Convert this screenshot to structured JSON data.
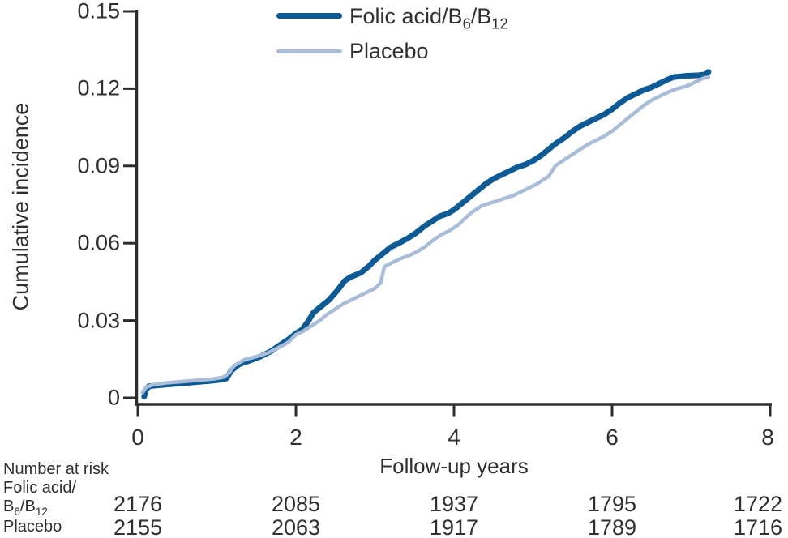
{
  "chart_data": {
    "type": "line",
    "title": "",
    "xlabel": "Follow-up years",
    "ylabel": "Cumulative incidence",
    "xlim": [
      0,
      8
    ],
    "ylim": [
      0,
      0.15
    ],
    "grid": false,
    "legend_position": "top-center",
    "xticks": [
      {
        "label": "0",
        "value": 0
      },
      {
        "label": "2",
        "value": 2
      },
      {
        "label": "4",
        "value": 4
      },
      {
        "label": "6",
        "value": 6
      },
      {
        "label": "8",
        "value": 8
      }
    ],
    "yticks": [
      {
        "label": "0",
        "value": 0
      },
      {
        "label": "0.03",
        "value": 0.03
      },
      {
        "label": "0.06",
        "value": 0.06
      },
      {
        "label": "0.09",
        "value": 0.09
      },
      {
        "label": "0.12",
        "value": 0.12
      },
      {
        "label": "0.15",
        "value": 0.15
      }
    ],
    "series": [
      {
        "name": "Folic acid/B6/B12",
        "slug": "folic-acid-b6-b12",
        "color": "#0d5a95",
        "stroke_width": 7,
        "points": [
          [
            0.08,
            0.0005
          ],
          [
            0.1,
            0.003
          ],
          [
            0.14,
            0.0045
          ],
          [
            0.3,
            0.005
          ],
          [
            0.5,
            0.0055
          ],
          [
            0.7,
            0.006
          ],
          [
            0.9,
            0.0065
          ],
          [
            1.05,
            0.007
          ],
          [
            1.12,
            0.0075
          ],
          [
            1.18,
            0.0105
          ],
          [
            1.28,
            0.013
          ],
          [
            1.42,
            0.0145
          ],
          [
            1.55,
            0.016
          ],
          [
            1.68,
            0.018
          ],
          [
            1.8,
            0.0205
          ],
          [
            1.92,
            0.023
          ],
          [
            2.0,
            0.025
          ],
          [
            2.08,
            0.0265
          ],
          [
            2.15,
            0.0295
          ],
          [
            2.22,
            0.033
          ],
          [
            2.32,
            0.0355
          ],
          [
            2.42,
            0.038
          ],
          [
            2.52,
            0.0415
          ],
          [
            2.62,
            0.0455
          ],
          [
            2.7,
            0.047
          ],
          [
            2.82,
            0.0485
          ],
          [
            2.92,
            0.051
          ],
          [
            3.0,
            0.0535
          ],
          [
            3.1,
            0.056
          ],
          [
            3.2,
            0.0585
          ],
          [
            3.3,
            0.06
          ],
          [
            3.42,
            0.062
          ],
          [
            3.52,
            0.064
          ],
          [
            3.62,
            0.0665
          ],
          [
            3.72,
            0.0685
          ],
          [
            3.82,
            0.0705
          ],
          [
            3.92,
            0.0715
          ],
          [
            4.0,
            0.073
          ],
          [
            4.1,
            0.0755
          ],
          [
            4.2,
            0.078
          ],
          [
            4.3,
            0.0805
          ],
          [
            4.4,
            0.083
          ],
          [
            4.5,
            0.085
          ],
          [
            4.6,
            0.0865
          ],
          [
            4.7,
            0.088
          ],
          [
            4.8,
            0.0895
          ],
          [
            4.9,
            0.0905
          ],
          [
            5.0,
            0.092
          ],
          [
            5.1,
            0.094
          ],
          [
            5.2,
            0.0965
          ],
          [
            5.3,
            0.099
          ],
          [
            5.4,
            0.101
          ],
          [
            5.5,
            0.1035
          ],
          [
            5.6,
            0.1055
          ],
          [
            5.7,
            0.107
          ],
          [
            5.8,
            0.1085
          ],
          [
            5.9,
            0.11
          ],
          [
            6.0,
            0.112
          ],
          [
            6.1,
            0.1145
          ],
          [
            6.2,
            0.1165
          ],
          [
            6.3,
            0.118
          ],
          [
            6.4,
            0.1195
          ],
          [
            6.5,
            0.1205
          ],
          [
            6.6,
            0.122
          ],
          [
            6.7,
            0.1235
          ],
          [
            6.78,
            0.1245
          ],
          [
            6.95,
            0.125
          ],
          [
            7.1,
            0.1252
          ],
          [
            7.18,
            0.1255
          ],
          [
            7.22,
            0.1265
          ]
        ]
      },
      {
        "name": "Placebo",
        "slug": "placebo",
        "color": "#a9bdd9",
        "stroke_width": 4.5,
        "points": [
          [
            0.06,
            0.002
          ],
          [
            0.1,
            0.004
          ],
          [
            0.18,
            0.005
          ],
          [
            0.35,
            0.0058
          ],
          [
            0.55,
            0.0063
          ],
          [
            0.75,
            0.0068
          ],
          [
            0.95,
            0.0073
          ],
          [
            1.08,
            0.008
          ],
          [
            1.15,
            0.0095
          ],
          [
            1.22,
            0.0125
          ],
          [
            1.35,
            0.0148
          ],
          [
            1.5,
            0.016
          ],
          [
            1.65,
            0.0175
          ],
          [
            1.78,
            0.0195
          ],
          [
            1.9,
            0.0215
          ],
          [
            2.0,
            0.0245
          ],
          [
            2.1,
            0.026
          ],
          [
            2.2,
            0.028
          ],
          [
            2.3,
            0.03
          ],
          [
            2.4,
            0.0325
          ],
          [
            2.5,
            0.0345
          ],
          [
            2.6,
            0.0365
          ],
          [
            2.7,
            0.038
          ],
          [
            2.8,
            0.0395
          ],
          [
            2.9,
            0.041
          ],
          [
            3.0,
            0.0425
          ],
          [
            3.07,
            0.0445
          ],
          [
            3.12,
            0.051
          ],
          [
            3.22,
            0.0525
          ],
          [
            3.32,
            0.054
          ],
          [
            3.45,
            0.0555
          ],
          [
            3.55,
            0.057
          ],
          [
            3.65,
            0.059
          ],
          [
            3.75,
            0.0615
          ],
          [
            3.85,
            0.0635
          ],
          [
            3.95,
            0.065
          ],
          [
            4.05,
            0.067
          ],
          [
            4.15,
            0.07
          ],
          [
            4.25,
            0.0725
          ],
          [
            4.35,
            0.0745
          ],
          [
            4.45,
            0.0755
          ],
          [
            4.55,
            0.0765
          ],
          [
            4.65,
            0.0775
          ],
          [
            4.75,
            0.0785
          ],
          [
            4.85,
            0.08
          ],
          [
            4.95,
            0.0815
          ],
          [
            5.05,
            0.083
          ],
          [
            5.12,
            0.0845
          ],
          [
            5.2,
            0.086
          ],
          [
            5.28,
            0.09
          ],
          [
            5.4,
            0.0925
          ],
          [
            5.5,
            0.0945
          ],
          [
            5.6,
            0.0965
          ],
          [
            5.7,
            0.0985
          ],
          [
            5.8,
            0.1
          ],
          [
            5.9,
            0.1015
          ],
          [
            6.0,
            0.1035
          ],
          [
            6.1,
            0.106
          ],
          [
            6.2,
            0.1085
          ],
          [
            6.3,
            0.111
          ],
          [
            6.4,
            0.1135
          ],
          [
            6.5,
            0.1155
          ],
          [
            6.6,
            0.117
          ],
          [
            6.7,
            0.1185
          ],
          [
            6.8,
            0.1198
          ],
          [
            6.95,
            0.121
          ],
          [
            7.05,
            0.1225
          ],
          [
            7.15,
            0.124
          ],
          [
            7.22,
            0.1245
          ]
        ]
      }
    ],
    "number_at_risk": {
      "header": "Number at risk",
      "times": [
        0,
        2,
        4,
        6,
        8
      ],
      "rows": [
        {
          "name": "Folic acid/B6/B12",
          "values": [
            "2176",
            "2085",
            "1937",
            "1795",
            "1722"
          ]
        },
        {
          "name": "Placebo",
          "values": [
            "2155",
            "2063",
            "1917",
            "1789",
            "1716"
          ]
        }
      ]
    }
  },
  "labels": {
    "ylabel": "Cumulative incidence",
    "xlabel": "Follow-up years",
    "risk_header": "Number at risk",
    "risk_folic_line1": "Folic acid/",
    "risk_folic_b1": "B",
    "risk_folic_sub1": "6",
    "risk_folic_b2": "/B",
    "risk_folic_sub2": "12",
    "risk_placebo": "Placebo"
  },
  "legend": {
    "folic": {
      "p1": "Folic acid/B",
      "s1": "6",
      "p2": "/B",
      "s2": "12"
    },
    "placebo": "Placebo"
  },
  "colors": {
    "folic": "#0d5a95",
    "placebo": "#a9bdd9",
    "axis": "#2d2d2d",
    "text": "#332f30"
  }
}
